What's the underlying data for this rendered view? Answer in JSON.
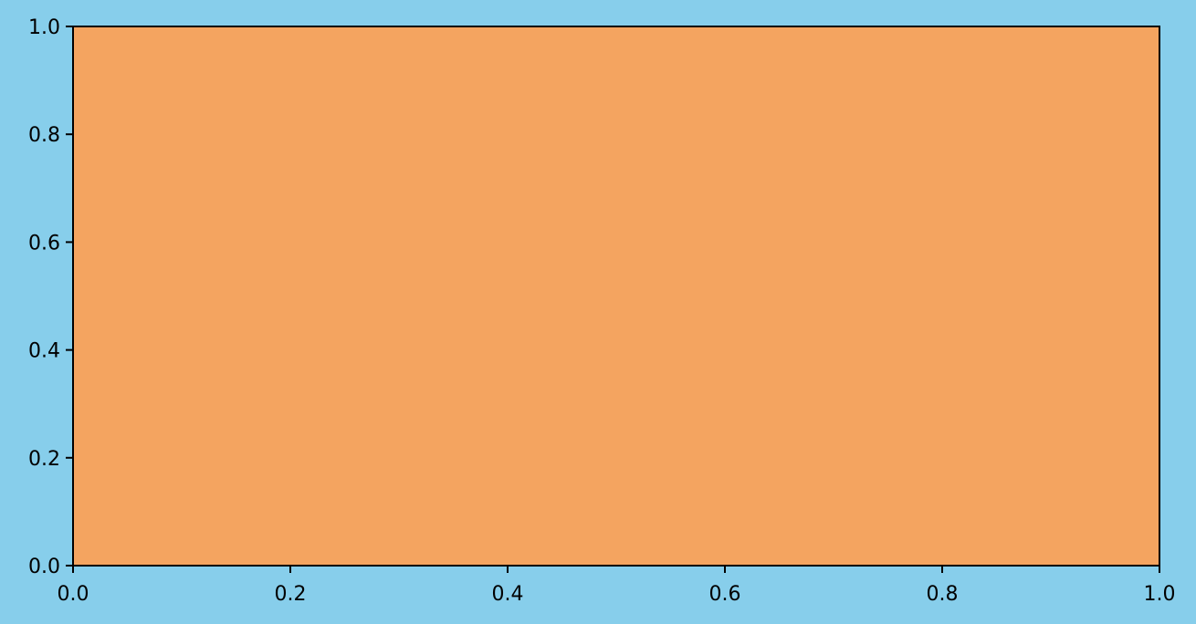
{
  "figure": {
    "background_color": "#87CEEB"
  },
  "chart_data": {
    "type": "area",
    "title": "",
    "xlabel": "",
    "ylabel": "",
    "xlim": [
      0.0,
      1.0
    ],
    "ylim": [
      0.0,
      1.0
    ],
    "grid": false,
    "plot_area_color": "#F4A460",
    "axis_color": "#000000",
    "x_ticks": [
      0.0,
      0.2,
      0.4,
      0.6,
      0.8,
      1.0
    ],
    "x_tick_labels": [
      "0.0",
      "0.2",
      "0.4",
      "0.6",
      "0.8",
      "1.0"
    ],
    "y_ticks": [
      0.0,
      0.2,
      0.4,
      0.6,
      0.8,
      1.0
    ],
    "y_tick_labels": [
      "0.0",
      "0.2",
      "0.4",
      "0.6",
      "0.8",
      "1.0"
    ],
    "series": []
  }
}
